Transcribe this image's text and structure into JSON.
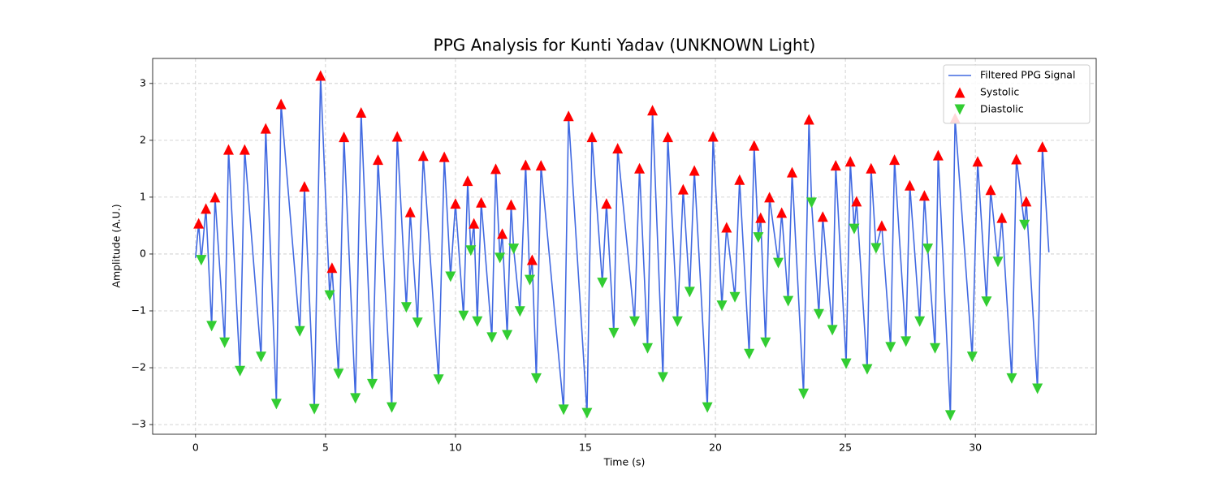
{
  "chart_data": {
    "type": "line",
    "title": "PPG Analysis for Kunti Yadav (UNKNOWN Light)",
    "xlabel": "Time (s)",
    "ylabel": "Amplitude (A.U.)",
    "xlim": [
      -1.65,
      34.65
    ],
    "ylim": [
      -3.17,
      3.44
    ],
    "xticks": [
      0,
      5,
      10,
      15,
      20,
      25,
      30
    ],
    "yticks": [
      {
        "value": -3,
        "label": "−3"
      },
      {
        "value": -2,
        "label": "−2"
      },
      {
        "value": -1,
        "label": "−1"
      },
      0,
      1,
      2,
      3
    ],
    "grid": true,
    "legend": "upper right",
    "series": [
      {
        "name": "Filtered PPG Signal",
        "color": "#4169e1",
        "mode": "line",
        "x": [
          0,
          0.12,
          0.22,
          0.4,
          0.62,
          0.75,
          1.12,
          1.27,
          1.71,
          1.89,
          2.52,
          2.7,
          3.11,
          3.29,
          4.01,
          4.19,
          4.57,
          4.81,
          5.16,
          5.25,
          5.5,
          5.71,
          6.15,
          6.37,
          6.8,
          7.02,
          7.55,
          7.76,
          8.11,
          8.26,
          8.54,
          8.76,
          9.35,
          9.57,
          9.81,
          10.0,
          10.31,
          10.47,
          10.59,
          10.71,
          10.84,
          10.99,
          11.4,
          11.55,
          11.71,
          11.8,
          11.99,
          12.14,
          12.24,
          12.48,
          12.7,
          12.86,
          12.95,
          13.11,
          13.29,
          14.16,
          14.35,
          15.06,
          15.25,
          15.65,
          15.81,
          16.09,
          16.24,
          16.89,
          17.08,
          17.39,
          17.58,
          17.98,
          18.17,
          18.54,
          18.76,
          19.01,
          19.19,
          19.69,
          19.91,
          20.25,
          20.43,
          20.75,
          20.93,
          21.3,
          21.49,
          21.65,
          21.74,
          21.93,
          22.08,
          22.42,
          22.55,
          22.8,
          22.95,
          23.39,
          23.6,
          23.7,
          23.98,
          24.13,
          24.5,
          24.63,
          25.03,
          25.19,
          25.34,
          25.43,
          25.84,
          25.99,
          26.18,
          26.4,
          26.74,
          26.89,
          27.33,
          27.48,
          27.86,
          28.04,
          28.17,
          28.45,
          28.57,
          29.04,
          29.22,
          29.88,
          30.09,
          30.43,
          30.59,
          30.87,
          31.02,
          31.4,
          31.58,
          31.89,
          31.96,
          32.39,
          32.58,
          32.83
        ],
        "values": [
          -0.07,
          0.54,
          -0.11,
          0.8,
          -1.27,
          1.0,
          -1.56,
          1.84,
          -2.06,
          1.84,
          -1.81,
          2.21,
          -2.64,
          2.64,
          -1.36,
          1.19,
          -2.73,
          3.14,
          -0.73,
          -0.24,
          -2.11,
          2.06,
          -2.54,
          2.49,
          -2.29,
          1.66,
          -2.7,
          2.07,
          -0.94,
          0.74,
          -1.21,
          1.73,
          -2.21,
          1.71,
          -0.4,
          0.89,
          -1.09,
          1.29,
          0.06,
          0.54,
          -1.19,
          0.91,
          -1.47,
          1.5,
          -0.07,
          0.36,
          -1.43,
          0.87,
          0.09,
          -1.01,
          1.57,
          -0.46,
          -0.1,
          -2.19,
          1.56,
          -2.74,
          2.43,
          -2.8,
          2.06,
          -0.51,
          0.89,
          -1.39,
          1.86,
          -1.19,
          1.51,
          -1.66,
          2.53,
          -2.17,
          2.06,
          -1.19,
          1.14,
          -0.67,
          1.47,
          -2.7,
          2.07,
          -0.91,
          0.47,
          -0.76,
          1.31,
          -1.76,
          1.91,
          0.29,
          0.64,
          -1.56,
          1.0,
          -0.16,
          0.73,
          -0.83,
          1.44,
          -2.46,
          2.37,
          0.9,
          -1.06,
          0.66,
          -1.34,
          1.56,
          -1.93,
          1.63,
          0.44,
          0.93,
          -2.03,
          1.51,
          0.1,
          0.5,
          -1.64,
          1.66,
          -1.54,
          1.21,
          -1.19,
          1.03,
          0.09,
          -1.66,
          1.74,
          -2.84,
          2.39,
          -1.81,
          1.63,
          -0.84,
          1.13,
          -0.14,
          0.64,
          -2.19,
          1.67,
          0.51,
          0.93,
          -2.37,
          1.89,
          0.03
        ]
      },
      {
        "name": "Systolic",
        "color": "#ff0000",
        "mode": "markers",
        "marker": "triangle-up",
        "x": [
          0.12,
          0.4,
          0.75,
          1.27,
          1.89,
          2.7,
          3.29,
          4.19,
          4.81,
          5.25,
          5.71,
          6.37,
          7.02,
          7.76,
          8.26,
          8.76,
          9.57,
          10.0,
          10.47,
          10.71,
          10.99,
          11.55,
          11.8,
          12.14,
          12.7,
          12.95,
          13.29,
          14.35,
          15.25,
          15.81,
          16.24,
          17.08,
          17.58,
          18.17,
          18.76,
          19.19,
          19.91,
          20.43,
          20.93,
          21.49,
          21.74,
          22.08,
          22.55,
          22.95,
          23.6,
          24.13,
          24.63,
          25.19,
          25.43,
          25.99,
          26.4,
          26.89,
          27.48,
          28.04,
          28.57,
          29.22,
          30.09,
          30.59,
          31.02,
          31.58,
          31.96,
          32.58
        ],
        "values": [
          0.54,
          0.8,
          1.0,
          1.84,
          1.84,
          2.21,
          2.64,
          1.19,
          3.14,
          -0.24,
          2.06,
          2.49,
          1.66,
          2.07,
          0.74,
          1.73,
          1.71,
          0.89,
          1.29,
          0.54,
          0.91,
          1.5,
          0.36,
          0.87,
          1.57,
          -0.1,
          1.56,
          2.43,
          2.06,
          0.89,
          1.86,
          1.51,
          2.53,
          2.06,
          1.14,
          1.47,
          2.07,
          0.47,
          1.31,
          1.91,
          0.64,
          1.0,
          0.73,
          1.44,
          2.37,
          0.66,
          1.56,
          1.63,
          0.93,
          1.51,
          0.5,
          1.66,
          1.21,
          1.03,
          1.74,
          2.39,
          1.63,
          1.13,
          0.64,
          1.67,
          0.93,
          1.89
        ]
      },
      {
        "name": "Diastolic",
        "color": "#32cd32",
        "mode": "markers",
        "marker": "triangle-down",
        "x": [
          0.22,
          0.62,
          1.12,
          1.71,
          2.52,
          3.11,
          4.01,
          4.57,
          5.16,
          5.5,
          6.15,
          6.8,
          7.55,
          8.11,
          8.54,
          9.35,
          9.81,
          10.31,
          10.59,
          10.84,
          11.4,
          11.71,
          11.99,
          12.24,
          12.48,
          12.86,
          13.11,
          14.16,
          15.06,
          15.65,
          16.09,
          16.89,
          17.39,
          17.98,
          18.54,
          19.01,
          19.69,
          20.25,
          20.75,
          21.3,
          21.65,
          21.93,
          22.42,
          22.8,
          23.39,
          23.7,
          23.98,
          24.5,
          25.03,
          25.34,
          25.84,
          26.18,
          26.74,
          27.33,
          27.86,
          28.17,
          28.45,
          29.04,
          29.88,
          30.43,
          30.87,
          31.4,
          31.89,
          32.39
        ],
        "values": [
          -0.11,
          -1.27,
          -1.56,
          -2.06,
          -1.81,
          -2.64,
          -1.36,
          -2.73,
          -0.73,
          -2.11,
          -2.54,
          -2.29,
          -2.7,
          -0.94,
          -1.21,
          -2.21,
          -0.4,
          -1.09,
          0.06,
          -1.19,
          -1.47,
          -0.07,
          -1.43,
          0.09,
          -1.01,
          -0.46,
          -2.19,
          -2.74,
          -2.8,
          -0.51,
          -1.39,
          -1.19,
          -1.66,
          -2.17,
          -1.19,
          -0.67,
          -2.7,
          -0.91,
          -0.76,
          -1.76,
          0.29,
          -1.56,
          -0.16,
          -0.83,
          -2.46,
          0.9,
          -1.06,
          -1.34,
          -1.93,
          0.44,
          -2.03,
          0.1,
          -1.64,
          -1.54,
          -1.19,
          0.09,
          -1.66,
          -2.84,
          -1.81,
          -0.84,
          -0.14,
          -2.19,
          0.51,
          -2.37
        ]
      }
    ]
  }
}
